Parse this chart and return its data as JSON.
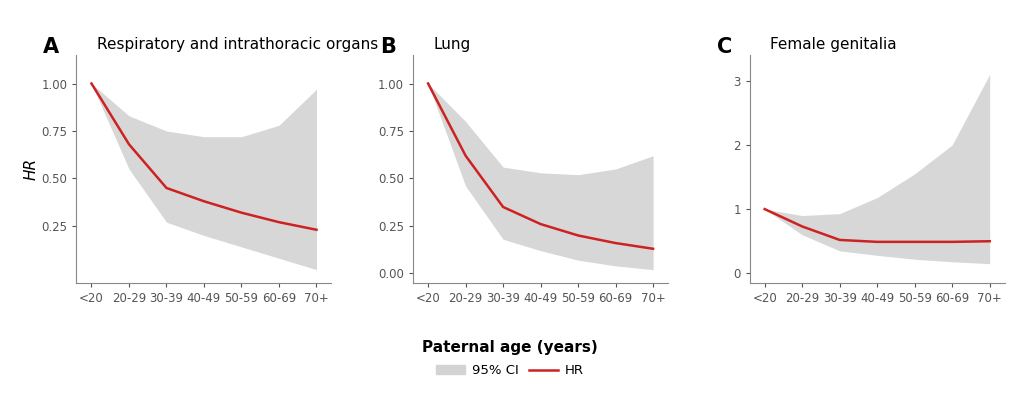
{
  "panels": [
    {
      "label": "A",
      "title": "Respiratory and intrathoracic organs",
      "ylabel": "HR",
      "ylim": [
        -0.05,
        1.15
      ],
      "yticks": [
        0.25,
        0.5,
        0.75,
        1.0
      ],
      "ytick_labels": [
        "0.25",
        "0.50",
        "0.75",
        "1.00"
      ],
      "x": [
        0,
        1,
        2,
        3,
        4,
        5,
        6
      ],
      "hr": [
        1.0,
        0.68,
        0.45,
        0.38,
        0.32,
        0.27,
        0.23
      ],
      "ci_lo": [
        1.0,
        0.55,
        0.27,
        0.2,
        0.14,
        0.08,
        0.02
      ],
      "ci_hi": [
        1.0,
        0.83,
        0.75,
        0.72,
        0.72,
        0.78,
        0.97
      ]
    },
    {
      "label": "B",
      "title": "Lung",
      "ylabel": "",
      "ylim": [
        -0.05,
        1.15
      ],
      "yticks": [
        0.0,
        0.25,
        0.5,
        0.75,
        1.0
      ],
      "ytick_labels": [
        "0.00",
        "0.25",
        "0.50",
        "0.75",
        "1.00"
      ],
      "x": [
        0,
        1,
        2,
        3,
        4,
        5,
        6
      ],
      "hr": [
        1.0,
        0.62,
        0.35,
        0.26,
        0.2,
        0.16,
        0.13
      ],
      "ci_lo": [
        1.0,
        0.46,
        0.18,
        0.12,
        0.07,
        0.04,
        0.02
      ],
      "ci_hi": [
        1.0,
        0.8,
        0.56,
        0.53,
        0.52,
        0.55,
        0.62
      ]
    },
    {
      "label": "C",
      "title": "Female genitalia",
      "ylabel": "",
      "ylim": [
        -0.15,
        3.4
      ],
      "yticks": [
        0,
        1,
        2,
        3
      ],
      "ytick_labels": [
        "0",
        "1",
        "2",
        "3"
      ],
      "x": [
        0,
        1,
        2,
        3,
        4,
        5,
        6
      ],
      "hr": [
        1.0,
        0.73,
        0.52,
        0.49,
        0.49,
        0.49,
        0.5
      ],
      "ci_lo": [
        1.0,
        0.6,
        0.35,
        0.28,
        0.22,
        0.18,
        0.15
      ],
      "ci_hi": [
        1.0,
        0.9,
        0.93,
        1.18,
        1.55,
        2.0,
        3.1
      ]
    }
  ],
  "xtick_labels": [
    "<20",
    "20-29",
    "30-39",
    "40-49",
    "50-59",
    "60-69",
    "70+"
  ],
  "line_color": "#cc2222",
  "ci_color": "#d3d3d3",
  "ci_alpha": 0.9,
  "line_width": 1.8,
  "background_color": "#ffffff",
  "xlabel": "Paternal age (years)",
  "legend_ci_label": "95% CI",
  "legend_hr_label": "HR",
  "label_fontsize": 15,
  "title_fontsize": 11,
  "tick_fontsize": 8.5,
  "axis_label_fontsize": 10
}
